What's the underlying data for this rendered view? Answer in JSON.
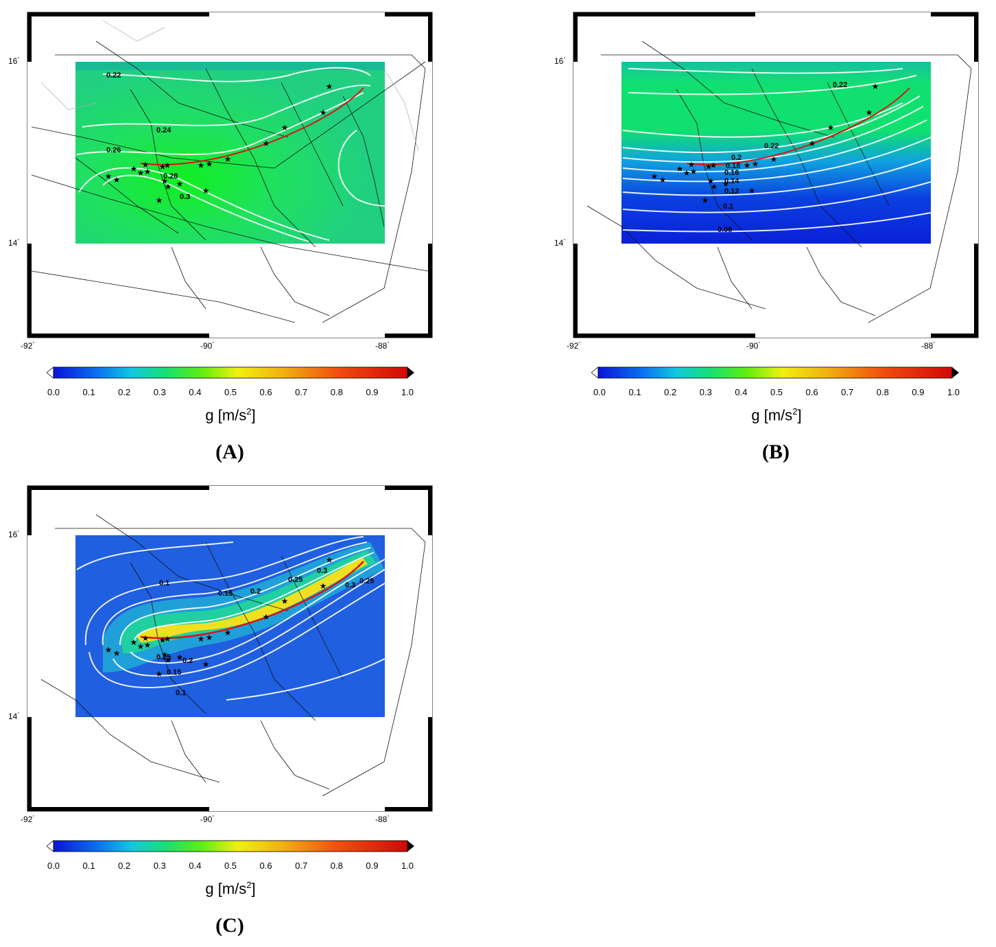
{
  "panels": [
    {
      "id": "A",
      "label": "(A)",
      "lat_ticks": [
        "16",
        "14"
      ],
      "lon_ticks": [
        "-92",
        "-90",
        "-88"
      ],
      "background": "#25d970",
      "contour_labels": [
        "0.22",
        "0.24",
        "0.26",
        "0.28",
        "0.3"
      ]
    },
    {
      "id": "B",
      "label": "(B)",
      "lat_ticks": [
        "16",
        "14"
      ],
      "lon_ticks": [
        "-92",
        "-90",
        "-88"
      ],
      "background": "#1a9ad6",
      "contour_labels": [
        "0.22",
        "0.22",
        "0.2",
        "0.18",
        "0.16",
        "0.14",
        "0.12",
        "0.1",
        "0.08"
      ]
    },
    {
      "id": "C",
      "label": "(C)",
      "lat_ticks": [
        "16",
        "14"
      ],
      "lon_ticks": [
        "-92",
        "-90",
        "-88"
      ],
      "background": "#1f5fe0",
      "contour_labels": [
        "0.1",
        "0.15",
        "0.2",
        "0.25",
        "0.3",
        "0.3",
        "0.25",
        "0.25",
        "0.2",
        "0.15",
        "0.1"
      ]
    }
  ],
  "colorbar": {
    "ticks": [
      "0.0",
      "0.1",
      "0.2",
      "0.3",
      "0.4",
      "0.5",
      "0.6",
      "0.7",
      "0.8",
      "0.9",
      "1.0"
    ],
    "title_main": "g [m/s",
    "title_sup": "2",
    "title_end": "]",
    "colors": [
      "#0a14d8",
      "#0a6cf0",
      "#10c8e0",
      "#18e070",
      "#20ee10",
      "#9aee10",
      "#f0f010",
      "#f0a010",
      "#f04010",
      "#d00808"
    ]
  },
  "legend_items": {
    "fault_trace_color": "#dd1111",
    "epicenter_marker": "star-icon"
  }
}
